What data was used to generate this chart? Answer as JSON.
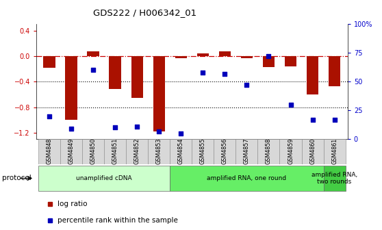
{
  "title": "GDS222 / H006342_01",
  "samples": [
    "GSM4848",
    "GSM4849",
    "GSM4850",
    "GSM4851",
    "GSM4852",
    "GSM4853",
    "GSM4854",
    "GSM4855",
    "GSM4856",
    "GSM4857",
    "GSM4858",
    "GSM4859",
    "GSM4860",
    "GSM4861"
  ],
  "log_ratio": [
    -0.18,
    -1.0,
    0.07,
    -0.52,
    -0.65,
    -1.18,
    -0.03,
    0.04,
    0.07,
    -0.03,
    -0.17,
    -0.16,
    -0.6,
    -0.47
  ],
  "percentile_rank": [
    20,
    9,
    60,
    10,
    11,
    7,
    5,
    58,
    57,
    47,
    72,
    30,
    17,
    17
  ],
  "ylim_left": [
    -1.3,
    0.5
  ],
  "ylim_right": [
    0,
    100
  ],
  "yticks_left": [
    0.4,
    0.0,
    -0.4,
    -0.8,
    -1.2
  ],
  "yticks_right": [
    100,
    75,
    50,
    25,
    0
  ],
  "hlines_dotdash": [
    0.0
  ],
  "hlines_dotted": [
    -0.4,
    -0.8
  ],
  "bar_color": "#aa1100",
  "scatter_color": "#0000bb",
  "protocol_groups": [
    {
      "label": "unamplified cDNA",
      "start": 0,
      "end": 5,
      "color": "#ccffcc"
    },
    {
      "label": "amplified RNA, one round",
      "start": 6,
      "end": 12,
      "color": "#66ee66"
    },
    {
      "label": "amplified RNA,\ntwo rounds",
      "start": 13,
      "end": 13,
      "color": "#44cc44"
    }
  ],
  "legend_items": [
    {
      "label": "log ratio",
      "color": "#aa1100"
    },
    {
      "label": "percentile rank within the sample",
      "color": "#0000bb"
    }
  ]
}
